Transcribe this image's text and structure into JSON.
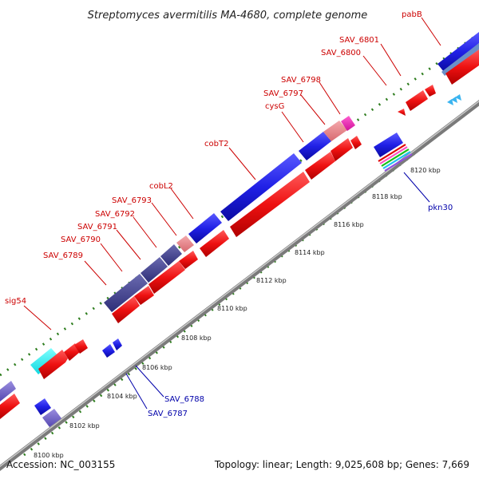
{
  "title": "Streptomyces avermitilis MA-4680, complete genome",
  "footer": {
    "accession": "Accession: NC_003155",
    "summary": "Topology: linear; Length: 9,025,608 bp; Genes: 7,669"
  },
  "colors": {
    "backbone": "#8a8a8a",
    "forward_gene": "#2020e0",
    "reverse_gene": "#ee1111",
    "dots": "#2e7d1e",
    "label_red": "#cc0000",
    "label_blue": "#0000aa"
  },
  "ticks": [
    "8100 kbp",
    "8102 kbp",
    "8104 kbp",
    "8106 kbp",
    "8108 kbp",
    "8110 kbp",
    "8112 kbp",
    "8114 kbp",
    "8116 kbp",
    "8118 kbp",
    "8120 kbp"
  ],
  "gene_labels_top": [
    "sig54",
    "SAV_6789",
    "SAV_6790",
    "SAV_6791",
    "SAV_6792",
    "SAV_6793",
    "cobL2",
    "cobT2",
    "cysG",
    "SAV_6797",
    "SAV_6798",
    "SAV_6800",
    "SAV_6801",
    "pabB"
  ],
  "gene_labels_bottom": [
    "SAV_6787",
    "SAV_6788",
    "pkn30"
  ]
}
